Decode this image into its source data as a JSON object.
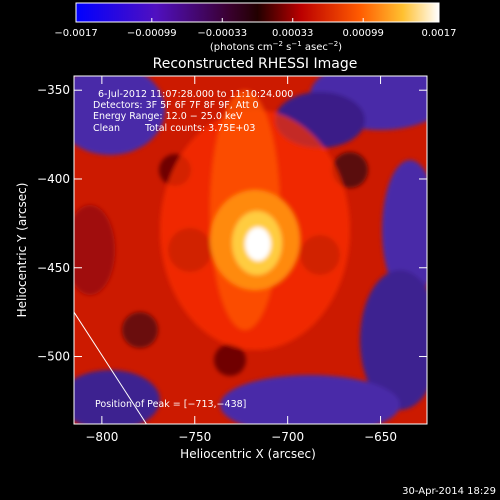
{
  "chart_data": {
    "type": "heatmap",
    "title": "Reconstructed RHESSI Image",
    "xlabel": "Heliocentric X (arcsec)",
    "ylabel": "Heliocentric Y (arcsec)",
    "xlim": [
      -815,
      -625
    ],
    "ylim": [
      -538,
      -342
    ],
    "x_ticks": [
      -800,
      -750,
      -700,
      -650
    ],
    "y_ticks": [
      -350,
      -400,
      -450,
      -500
    ],
    "x_tick_labels": [
      "−800",
      "−750",
      "−700",
      "−650"
    ],
    "y_tick_labels": [
      "−350",
      "−400",
      "−450",
      "−500"
    ],
    "peak": [
      -713,
      -438
    ],
    "colorbar": {
      "range": [
        -0.0017,
        0.0017
      ],
      "ticks": [
        -0.0017,
        -0.00099,
        -0.00033,
        0.00033,
        0.00099,
        0.0017
      ],
      "tick_labels": [
        "−0.0017",
        "−0.00099",
        "−0.00033",
        "0.00033",
        "0.00099",
        "0.0017"
      ],
      "unit_text": "(photons cm",
      "unit_exp1": "−2",
      "unit_mid": " s",
      "unit_exp2": "−1",
      "unit_mid2": " asec",
      "unit_exp3": "−2",
      "unit_close": ")"
    },
    "annotations": {
      "time_range": "6-Jul-2012 11:07:28.000 to 11:10:24.000",
      "detectors": "Detectors: 3F 5F 6F 7F 8F 9F, Att 0",
      "energy_range": "Energy Range: 12.0 − 25.0 keV",
      "method": "Clean",
      "total_counts": "Total counts: 3.75E+03",
      "peak_position": "Position of Peak = [−713,−438]"
    },
    "limb_line": [
      [
        -815,
        -475
      ],
      [
        -776,
        -538
      ]
    ],
    "colors": {
      "min": "#0000ff",
      "neg": "#4a2aa8",
      "mid": "#220000",
      "pos1": "#cc0000",
      "pos2": "#ff6600",
      "max": "#ffffff"
    }
  },
  "footer": {
    "timestamp": "30-Apr-2014 18:29"
  }
}
